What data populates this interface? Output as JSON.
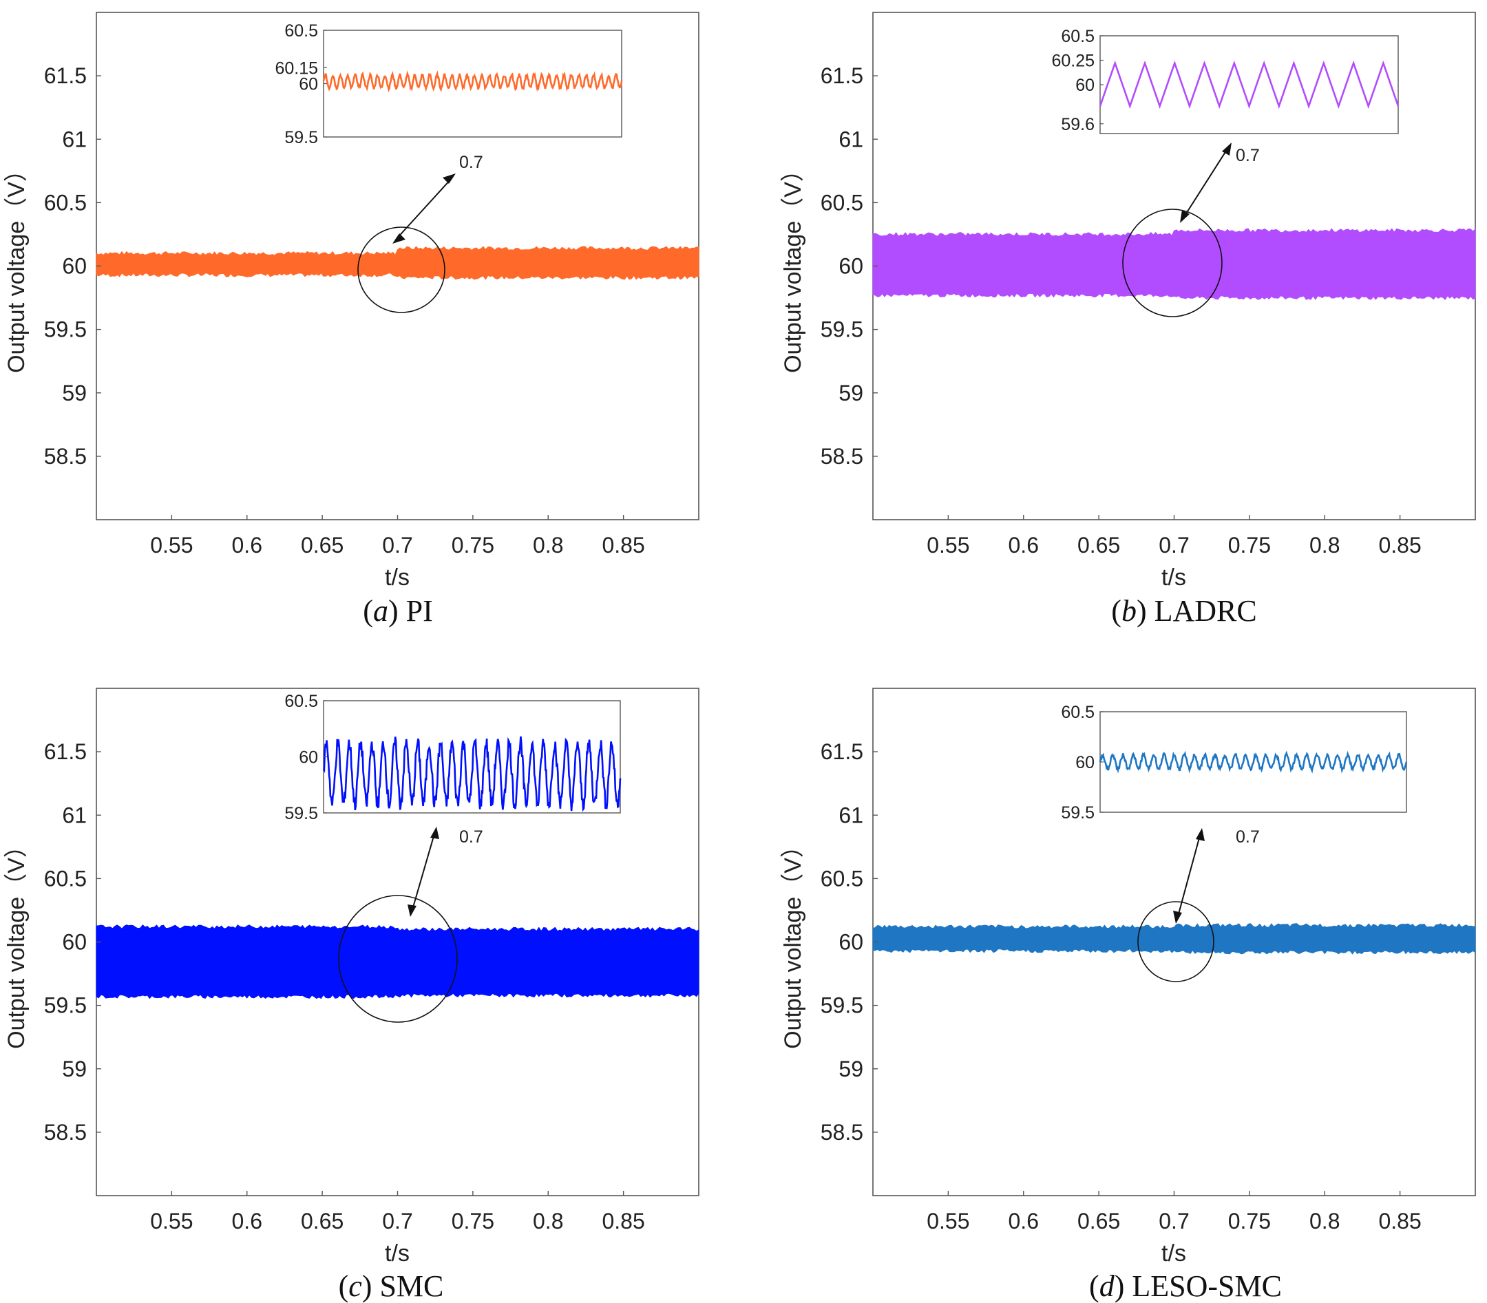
{
  "chart_data": [
    {
      "type": "line",
      "caption": {
        "letter": "a",
        "name": "PI"
      },
      "color": "#ff6a2b",
      "xlabel": "t/s",
      "ylabel": "Output voltage（V）",
      "xlim": [
        0.5,
        0.9
      ],
      "ylim": [
        58.0,
        62.0
      ],
      "xticks": [
        0.55,
        0.6,
        0.65,
        0.7,
        0.75,
        0.8,
        0.85
      ],
      "yticks": [
        58.5,
        59,
        59.5,
        60,
        60.5,
        61,
        61.5
      ],
      "series": [
        {
          "name": "PI",
          "center": 60.02,
          "band_before": [
            59.93,
            60.1
          ],
          "band_after": [
            59.91,
            60.14
          ],
          "step_at": 0.7
        }
      ],
      "inset": {
        "yticks": [
          59.5,
          60,
          60.15,
          60.5
        ],
        "ylim": [
          59.5,
          60.5
        ],
        "center": 60.02,
        "amplitude": 0.06,
        "cycles": 40
      },
      "annotation": "0.7"
    },
    {
      "type": "line",
      "caption": {
        "letter": "b",
        "name": "LADRC"
      },
      "color": "#b24cff",
      "xlabel": "t/s",
      "ylabel": "Output voltage（V）",
      "xlim": [
        0.5,
        0.9
      ],
      "ylim": [
        58.0,
        62.0
      ],
      "xticks": [
        0.55,
        0.6,
        0.65,
        0.7,
        0.75,
        0.8,
        0.85
      ],
      "yticks": [
        58.5,
        59,
        59.5,
        60,
        60.5,
        61,
        61.5
      ],
      "series": [
        {
          "name": "LADRC",
          "center": 60.0,
          "band_before": [
            59.77,
            60.25
          ],
          "band_after": [
            59.75,
            60.28
          ],
          "step_at": 0.7
        }
      ],
      "inset": {
        "yticks": [
          59.6,
          60,
          60.25,
          60.5
        ],
        "ylim": [
          59.5,
          60.5
        ],
        "center": 60.0,
        "amplitude": 0.22,
        "cycles": 10
      },
      "annotation": "0.7"
    },
    {
      "type": "line",
      "caption": {
        "letter": "c",
        "name": "SMC"
      },
      "color": "#0010ff",
      "xlabel": "t/s",
      "ylabel": "Output voltage（V）",
      "xlim": [
        0.5,
        0.9
      ],
      "ylim": [
        58.0,
        62.0
      ],
      "xticks": [
        0.55,
        0.6,
        0.65,
        0.7,
        0.75,
        0.8,
        0.85
      ],
      "yticks": [
        58.5,
        59,
        59.5,
        60,
        60.5,
        61,
        61.5
      ],
      "series": [
        {
          "name": "SMC",
          "center": 59.85,
          "band_before": [
            59.57,
            60.12
          ],
          "band_after": [
            59.58,
            60.1
          ],
          "step_at": 0.7
        }
      ],
      "inset": {
        "yticks": [
          59.5,
          60,
          60.5
        ],
        "ylim": [
          59.5,
          60.5
        ],
        "center": 59.85,
        "amplitude": 0.27,
        "cycles": 26
      },
      "annotation": "0.7"
    },
    {
      "type": "line",
      "caption": {
        "letter": "d",
        "name": "LESO-SMC"
      },
      "color": "#1f77c4",
      "xlabel": "t/s",
      "ylabel": "Output voltage（V）",
      "xlim": [
        0.5,
        0.9
      ],
      "ylim": [
        58.0,
        62.0
      ],
      "xticks": [
        0.55,
        0.6,
        0.65,
        0.7,
        0.75,
        0.8,
        0.85
      ],
      "yticks": [
        58.5,
        59,
        59.5,
        60,
        60.5,
        61,
        61.5
      ],
      "series": [
        {
          "name": "LESO-SMC",
          "center": 60.0,
          "band_before": [
            59.93,
            60.12
          ],
          "band_after": [
            59.92,
            60.13
          ],
          "step_at": 0.7
        }
      ],
      "inset": {
        "yticks": [
          59.5,
          60,
          60.5
        ],
        "ylim": [
          59.5,
          60.5
        ],
        "center": 60.0,
        "amplitude": 0.07,
        "cycles": 30
      },
      "annotation": "0.7"
    }
  ]
}
